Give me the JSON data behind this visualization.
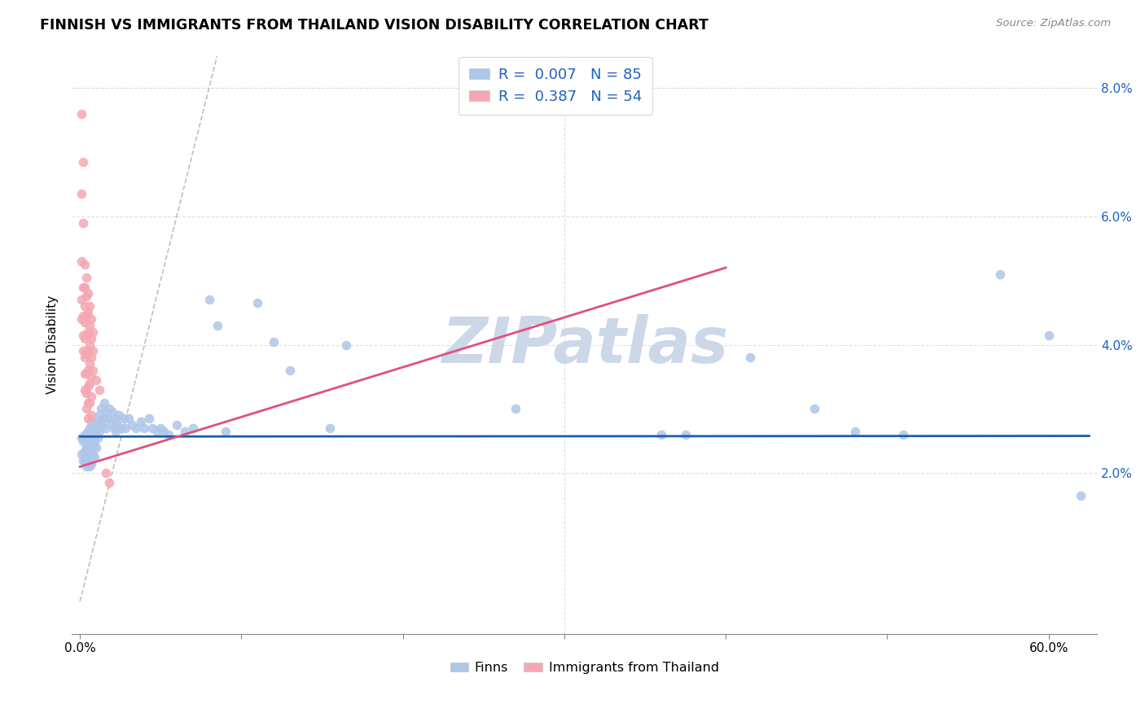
{
  "title": "FINNISH VS IMMIGRANTS FROM THAILAND VISION DISABILITY CORRELATION CHART",
  "source": "Source: ZipAtlas.com",
  "ylabel": "Vision Disability",
  "xlim": [
    -0.005,
    0.63
  ],
  "ylim": [
    -0.005,
    0.085
  ],
  "x_tick_vals": [
    0.0,
    0.1,
    0.2,
    0.3,
    0.4,
    0.5,
    0.6
  ],
  "x_tick_labels": [
    "0.0%",
    "",
    "",
    "",
    "",
    "",
    "60.0%"
  ],
  "y_tick_vals": [
    0.02,
    0.04,
    0.06,
    0.08
  ],
  "y_tick_labels": [
    "2.0%",
    "4.0%",
    "6.0%",
    "8.0%"
  ],
  "finns_R": "0.007",
  "finns_N": "85",
  "thailand_R": "0.387",
  "thailand_N": "54",
  "finns_color": "#aec6e8",
  "thailand_color": "#f4a7b3",
  "finns_line_color": "#1a5fa8",
  "thailand_line_color": "#e05080",
  "diagonal_color": "#c0c0c0",
  "legend_text_color": "#2060c0",
  "watermark": "ZIPatlas",
  "watermark_color": "#ccd8e8",
  "grid_color": "#e0e0e0",
  "finns_scatter": [
    [
      0.001,
      0.0255
    ],
    [
      0.001,
      0.023
    ],
    [
      0.002,
      0.025
    ],
    [
      0.002,
      0.022
    ],
    [
      0.003,
      0.026
    ],
    [
      0.003,
      0.0235
    ],
    [
      0.003,
      0.022
    ],
    [
      0.004,
      0.024
    ],
    [
      0.004,
      0.0225
    ],
    [
      0.004,
      0.021
    ],
    [
      0.005,
      0.0265
    ],
    [
      0.005,
      0.0245
    ],
    [
      0.005,
      0.023
    ],
    [
      0.005,
      0.0215
    ],
    [
      0.006,
      0.027
    ],
    [
      0.006,
      0.025
    ],
    [
      0.006,
      0.023
    ],
    [
      0.006,
      0.021
    ],
    [
      0.007,
      0.028
    ],
    [
      0.007,
      0.0255
    ],
    [
      0.007,
      0.0235
    ],
    [
      0.007,
      0.0215
    ],
    [
      0.008,
      0.027
    ],
    [
      0.008,
      0.025
    ],
    [
      0.008,
      0.023
    ],
    [
      0.009,
      0.0265
    ],
    [
      0.009,
      0.0245
    ],
    [
      0.009,
      0.0225
    ],
    [
      0.01,
      0.028
    ],
    [
      0.01,
      0.026
    ],
    [
      0.01,
      0.024
    ],
    [
      0.011,
      0.0275
    ],
    [
      0.011,
      0.0255
    ],
    [
      0.012,
      0.029
    ],
    [
      0.012,
      0.0265
    ],
    [
      0.013,
      0.03
    ],
    [
      0.013,
      0.0275
    ],
    [
      0.014,
      0.0285
    ],
    [
      0.015,
      0.031
    ],
    [
      0.015,
      0.0285
    ],
    [
      0.016,
      0.0295
    ],
    [
      0.016,
      0.027
    ],
    [
      0.017,
      0.0285
    ],
    [
      0.018,
      0.03
    ],
    [
      0.019,
      0.028
    ],
    [
      0.02,
      0.0295
    ],
    [
      0.021,
      0.027
    ],
    [
      0.022,
      0.0285
    ],
    [
      0.022,
      0.0265
    ],
    [
      0.023,
      0.0275
    ],
    [
      0.024,
      0.029
    ],
    [
      0.025,
      0.027
    ],
    [
      0.027,
      0.0285
    ],
    [
      0.028,
      0.027
    ],
    [
      0.03,
      0.0285
    ],
    [
      0.032,
      0.0275
    ],
    [
      0.035,
      0.027
    ],
    [
      0.038,
      0.028
    ],
    [
      0.04,
      0.027
    ],
    [
      0.043,
      0.0285
    ],
    [
      0.045,
      0.027
    ],
    [
      0.048,
      0.0265
    ],
    [
      0.05,
      0.027
    ],
    [
      0.052,
      0.0265
    ],
    [
      0.055,
      0.026
    ],
    [
      0.06,
      0.0275
    ],
    [
      0.065,
      0.0265
    ],
    [
      0.07,
      0.027
    ],
    [
      0.08,
      0.047
    ],
    [
      0.085,
      0.043
    ],
    [
      0.09,
      0.0265
    ],
    [
      0.11,
      0.0465
    ],
    [
      0.12,
      0.0405
    ],
    [
      0.13,
      0.036
    ],
    [
      0.155,
      0.027
    ],
    [
      0.165,
      0.04
    ],
    [
      0.27,
      0.03
    ],
    [
      0.36,
      0.026
    ],
    [
      0.375,
      0.026
    ],
    [
      0.415,
      0.038
    ],
    [
      0.455,
      0.03
    ],
    [
      0.48,
      0.0265
    ],
    [
      0.51,
      0.026
    ],
    [
      0.57,
      0.051
    ],
    [
      0.6,
      0.0415
    ],
    [
      0.62,
      0.0165
    ]
  ],
  "thailand_scatter": [
    [
      0.001,
      0.076
    ],
    [
      0.002,
      0.0685
    ],
    [
      0.001,
      0.0635
    ],
    [
      0.002,
      0.059
    ],
    [
      0.001,
      0.053
    ],
    [
      0.002,
      0.049
    ],
    [
      0.001,
      0.047
    ],
    [
      0.002,
      0.0445
    ],
    [
      0.001,
      0.044
    ],
    [
      0.002,
      0.0415
    ],
    [
      0.002,
      0.039
    ],
    [
      0.003,
      0.0525
    ],
    [
      0.003,
      0.049
    ],
    [
      0.003,
      0.046
    ],
    [
      0.003,
      0.0435
    ],
    [
      0.003,
      0.041
    ],
    [
      0.003,
      0.038
    ],
    [
      0.003,
      0.0355
    ],
    [
      0.003,
      0.033
    ],
    [
      0.004,
      0.0505
    ],
    [
      0.004,
      0.0475
    ],
    [
      0.004,
      0.0445
    ],
    [
      0.004,
      0.0415
    ],
    [
      0.004,
      0.0385
    ],
    [
      0.004,
      0.0355
    ],
    [
      0.004,
      0.0325
    ],
    [
      0.004,
      0.03
    ],
    [
      0.005,
      0.048
    ],
    [
      0.005,
      0.045
    ],
    [
      0.005,
      0.042
    ],
    [
      0.005,
      0.039
    ],
    [
      0.005,
      0.036
    ],
    [
      0.005,
      0.0335
    ],
    [
      0.005,
      0.031
    ],
    [
      0.005,
      0.0285
    ],
    [
      0.006,
      0.046
    ],
    [
      0.006,
      0.043
    ],
    [
      0.006,
      0.04
    ],
    [
      0.006,
      0.037
    ],
    [
      0.006,
      0.034
    ],
    [
      0.006,
      0.031
    ],
    [
      0.007,
      0.044
    ],
    [
      0.007,
      0.041
    ],
    [
      0.007,
      0.038
    ],
    [
      0.007,
      0.035
    ],
    [
      0.007,
      0.032
    ],
    [
      0.007,
      0.029
    ],
    [
      0.008,
      0.042
    ],
    [
      0.008,
      0.039
    ],
    [
      0.008,
      0.036
    ],
    [
      0.01,
      0.0345
    ],
    [
      0.012,
      0.033
    ],
    [
      0.016,
      0.02
    ],
    [
      0.018,
      0.0185
    ]
  ],
  "finns_line_x": [
    0.0,
    0.625
  ],
  "finns_line_y": [
    0.0257,
    0.0258
  ],
  "thailand_line_x": [
    0.0,
    0.4
  ],
  "thailand_line_y": [
    0.021,
    0.052
  ],
  "diagonal_line_x": [
    0.0,
    0.085
  ],
  "diagonal_line_y": [
    0.0,
    0.085
  ]
}
